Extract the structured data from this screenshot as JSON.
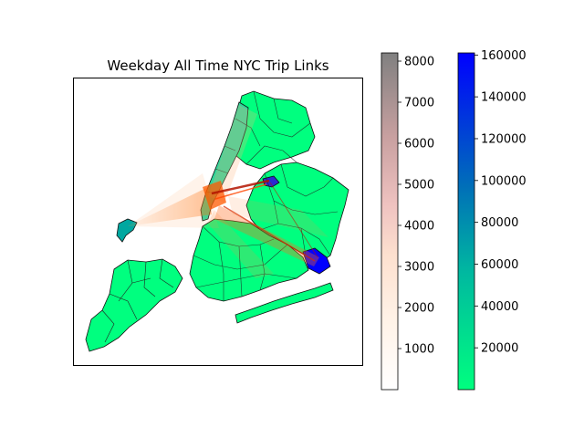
{
  "title": "Weekday All Time NYC Trip Links",
  "colors": {
    "zone_low": "#00ff7f",
    "zone_high": "#0000ff",
    "zone_mid": "#00a7a0",
    "link_low": "#ffffff",
    "link_mid": "#ff6a00",
    "link_high": "#808080",
    "outline": "#111111"
  },
  "chart_data": {
    "type": "map",
    "description_none": "",
    "colorbars": [
      {
        "name": "",
        "colormap": "white-orange-pink-gray",
        "range": [
          0,
          8200
        ],
        "ticks": [
          1000,
          2000,
          3000,
          4000,
          5000,
          6000,
          7000,
          8000
        ],
        "tick_labels": [
          "1000",
          "2000",
          "3000",
          "4000",
          "5000",
          "6000",
          "7000",
          "8000"
        ]
      },
      {
        "name": "",
        "colormap": "green-to-blue",
        "range": [
          0,
          161000
        ],
        "ticks": [
          20000,
          40000,
          60000,
          80000,
          100000,
          120000,
          140000,
          160000
        ],
        "tick_labels": [
          "20000",
          "40000",
          "60000",
          "80000",
          "100000",
          "120000",
          "140000",
          "160000"
        ]
      }
    ]
  }
}
